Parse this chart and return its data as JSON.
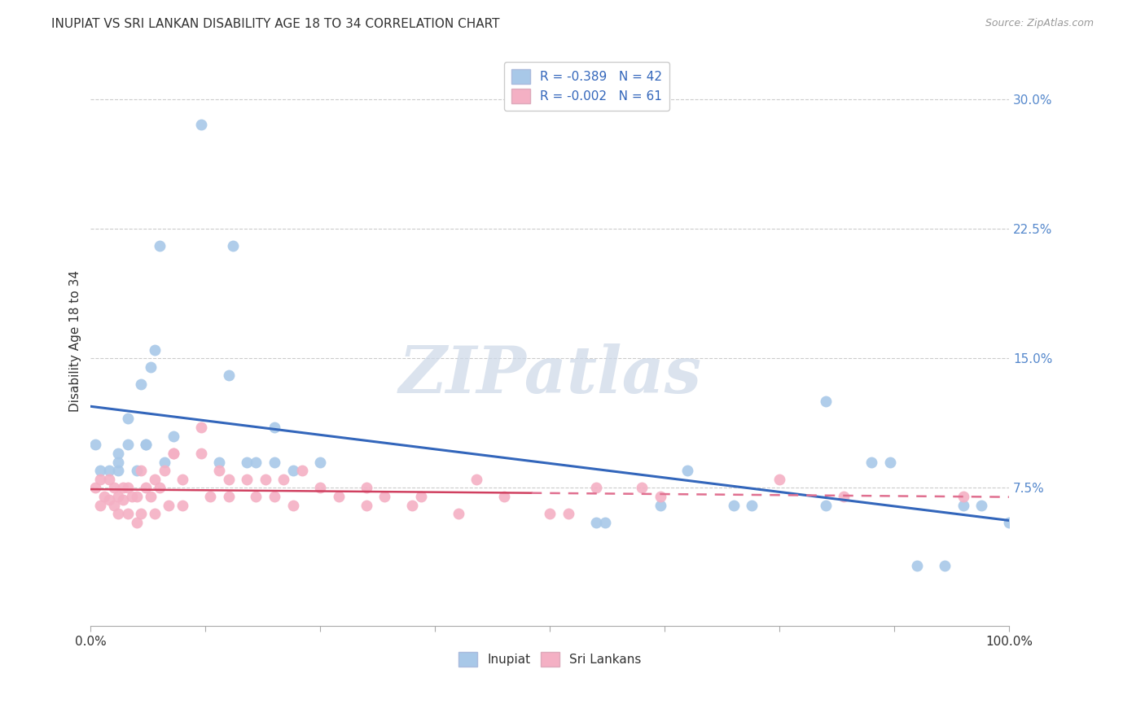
{
  "title": "INUPIAT VS SRI LANKAN DISABILITY AGE 18 TO 34 CORRELATION CHART",
  "source": "Source: ZipAtlas.com",
  "ylabel": "Disability Age 18 to 34",
  "xlim": [
    0,
    1.0
  ],
  "ylim": [
    -0.005,
    0.325
  ],
  "yticks": [
    0.075,
    0.15,
    0.225,
    0.3
  ],
  "ytick_labels": [
    "7.5%",
    "15.0%",
    "22.5%",
    "30.0%"
  ],
  "xticks": [
    0.0,
    0.125,
    0.25,
    0.375,
    0.5,
    0.625,
    0.75,
    0.875,
    1.0
  ],
  "xtick_labels_show": [
    "0.0%",
    "",
    "",
    "",
    "",
    "",
    "",
    "",
    "100.0%"
  ],
  "inupiat_R": -0.389,
  "inupiat_N": 42,
  "srilankan_R": -0.002,
  "srilankan_N": 61,
  "inupiat_color": "#a8c8e8",
  "srilankan_color": "#f4b0c4",
  "inupiat_line_color": "#3366bb",
  "srilankan_solid_color": "#d04060",
  "srilankan_dash_color": "#e07090",
  "watermark_color": "#ccd8e8",
  "inupiat_x": [
    0.005,
    0.01,
    0.02,
    0.03,
    0.03,
    0.03,
    0.04,
    0.04,
    0.05,
    0.055,
    0.06,
    0.06,
    0.065,
    0.07,
    0.075,
    0.08,
    0.09,
    0.12,
    0.14,
    0.15,
    0.155,
    0.17,
    0.18,
    0.2,
    0.2,
    0.22,
    0.25,
    0.55,
    0.56,
    0.62,
    0.65,
    0.7,
    0.72,
    0.8,
    0.8,
    0.85,
    0.87,
    0.9,
    0.93,
    0.95,
    0.97,
    1.0
  ],
  "inupiat_y": [
    0.1,
    0.085,
    0.085,
    0.085,
    0.095,
    0.09,
    0.1,
    0.115,
    0.085,
    0.135,
    0.1,
    0.1,
    0.145,
    0.155,
    0.215,
    0.09,
    0.105,
    0.285,
    0.09,
    0.14,
    0.215,
    0.09,
    0.09,
    0.09,
    0.11,
    0.085,
    0.09,
    0.055,
    0.055,
    0.065,
    0.085,
    0.065,
    0.065,
    0.125,
    0.065,
    0.09,
    0.09,
    0.03,
    0.03,
    0.065,
    0.065,
    0.055
  ],
  "srilankan_x": [
    0.005,
    0.01,
    0.01,
    0.015,
    0.02,
    0.02,
    0.025,
    0.025,
    0.03,
    0.03,
    0.035,
    0.035,
    0.04,
    0.04,
    0.045,
    0.05,
    0.05,
    0.055,
    0.055,
    0.06,
    0.065,
    0.07,
    0.07,
    0.075,
    0.08,
    0.085,
    0.09,
    0.09,
    0.1,
    0.1,
    0.12,
    0.12,
    0.13,
    0.14,
    0.15,
    0.15,
    0.17,
    0.18,
    0.19,
    0.2,
    0.21,
    0.22,
    0.23,
    0.25,
    0.27,
    0.3,
    0.3,
    0.32,
    0.35,
    0.36,
    0.4,
    0.42,
    0.45,
    0.5,
    0.52,
    0.55,
    0.6,
    0.62,
    0.75,
    0.82,
    0.95
  ],
  "srilankan_y": [
    0.075,
    0.065,
    0.08,
    0.07,
    0.068,
    0.08,
    0.065,
    0.075,
    0.06,
    0.07,
    0.068,
    0.075,
    0.06,
    0.075,
    0.07,
    0.055,
    0.07,
    0.06,
    0.085,
    0.075,
    0.07,
    0.06,
    0.08,
    0.075,
    0.085,
    0.065,
    0.095,
    0.095,
    0.065,
    0.08,
    0.095,
    0.11,
    0.07,
    0.085,
    0.07,
    0.08,
    0.08,
    0.07,
    0.08,
    0.07,
    0.08,
    0.065,
    0.085,
    0.075,
    0.07,
    0.075,
    0.065,
    0.07,
    0.065,
    0.07,
    0.06,
    0.08,
    0.07,
    0.06,
    0.06,
    0.075,
    0.075,
    0.07,
    0.08,
    0.07,
    0.07
  ]
}
